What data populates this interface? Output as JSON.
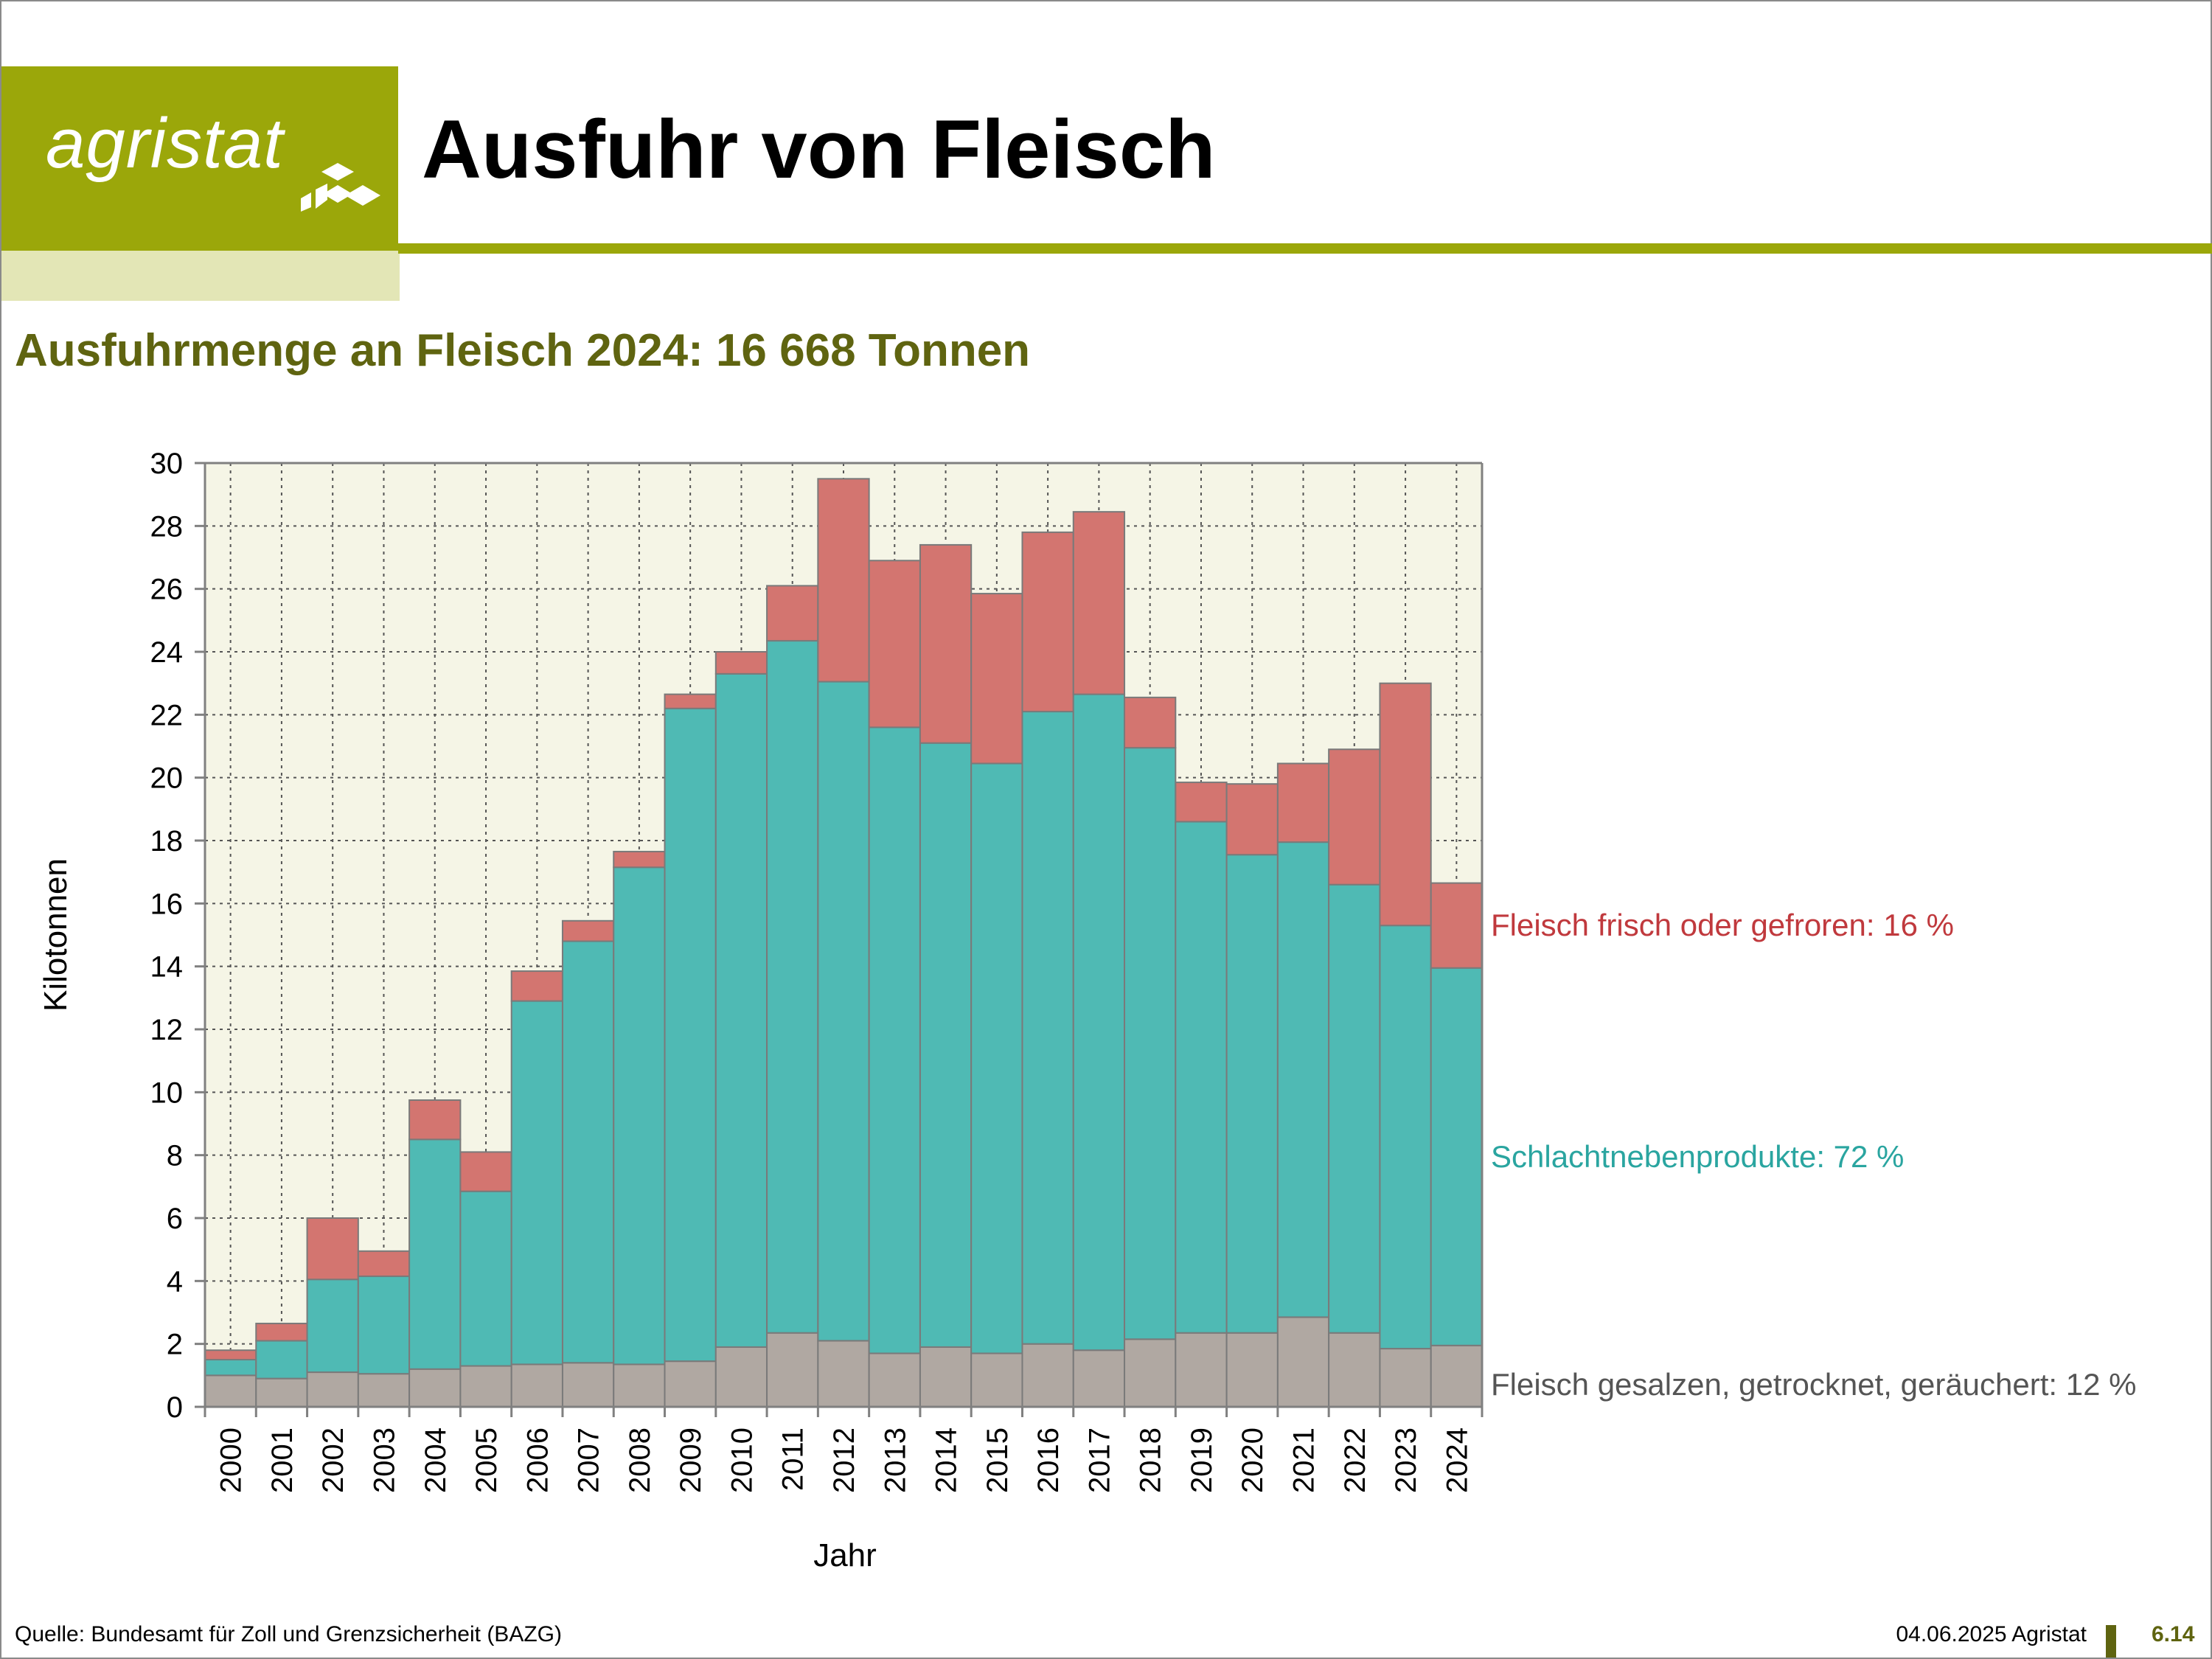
{
  "header": {
    "logo_text": "agristat",
    "title": "Ausfuhr von Fleisch",
    "brand_color": "#9ba70a"
  },
  "subtitle": "Ausfuhrmenge an Fleisch 2024: 16 668 Tonnen",
  "footer": {
    "source": "Quelle: Bundesamt für Zoll und Grenzsicherheit (BAZG)",
    "date": "04.06.2025 Agristat",
    "page": "6.14"
  },
  "chart_data": {
    "type": "bar",
    "stacked": true,
    "xlabel": "Jahr",
    "ylabel": "Kilotonnen",
    "ylim": [
      0,
      30
    ],
    "yticks": [
      0,
      2,
      4,
      6,
      8,
      10,
      12,
      14,
      16,
      18,
      20,
      22,
      24,
      26,
      28,
      30
    ],
    "grid": true,
    "categories": [
      "2000",
      "2001",
      "2002",
      "2003",
      "2004",
      "2005",
      "2006",
      "2007",
      "2008",
      "2009",
      "2010",
      "2011",
      "2012",
      "2013",
      "2014",
      "2015",
      "2016",
      "2017",
      "2018",
      "2019",
      "2020",
      "2021",
      "2022",
      "2023",
      "2024"
    ],
    "series": [
      {
        "name": "Fleisch gesalzen, getrocknet, geräuchert: 12 %",
        "color": "#b0a8a2",
        "values": [
          1.0,
          0.9,
          1.1,
          1.05,
          1.2,
          1.3,
          1.35,
          1.4,
          1.35,
          1.45,
          1.9,
          2.35,
          2.1,
          1.7,
          1.9,
          1.7,
          2.0,
          1.8,
          2.15,
          2.35,
          2.35,
          2.85,
          2.35,
          1.85,
          1.95
        ]
      },
      {
        "name": "Schlachtnebenprodukte: 72 %",
        "color": "#4fbab4",
        "values": [
          0.5,
          1.2,
          2.95,
          3.1,
          7.3,
          5.55,
          11.55,
          13.4,
          15.8,
          20.75,
          21.4,
          22.0,
          20.95,
          19.9,
          19.2,
          18.75,
          20.1,
          20.85,
          18.8,
          16.25,
          15.2,
          15.1,
          14.25,
          13.45,
          12.0
        ]
      },
      {
        "name": "Fleisch frisch oder gefroren: 16 %",
        "color": "#d37570",
        "values": [
          0.3,
          0.55,
          1.95,
          0.8,
          1.25,
          1.25,
          0.95,
          0.65,
          0.5,
          0.45,
          0.7,
          1.75,
          6.45,
          5.3,
          6.3,
          5.4,
          5.7,
          5.8,
          1.6,
          1.25,
          2.25,
          2.5,
          4.3,
          7.7,
          2.7
        ]
      }
    ],
    "plot_background": "#f5f5e6",
    "label_colors": [
      "#555555",
      "#2aa5a0",
      "#c0393d"
    ]
  }
}
